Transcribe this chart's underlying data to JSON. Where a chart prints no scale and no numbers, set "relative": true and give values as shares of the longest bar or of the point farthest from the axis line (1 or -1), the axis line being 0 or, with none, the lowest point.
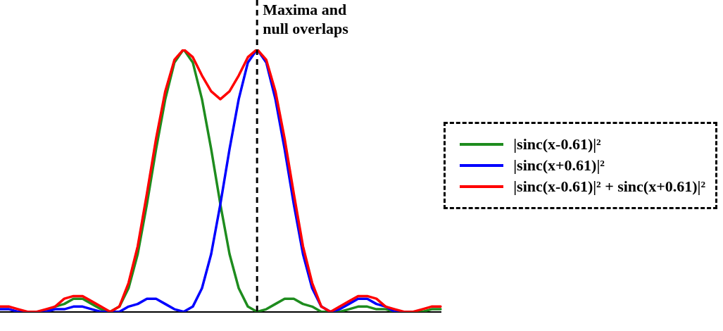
{
  "chart_data": {
    "type": "line",
    "relative": true,
    "legend": "right",
    "marker": "none",
    "line_style": "solid",
    "categories": [
      null,
      null,
      null,
      null,
      null,
      null,
      null,
      null,
      null,
      null,
      null,
      null,
      null,
      null,
      null,
      null,
      null,
      null,
      null,
      null,
      null,
      null,
      null,
      null,
      null,
      null,
      null,
      null,
      null,
      null,
      null,
      null,
      null,
      null,
      null,
      null,
      null,
      null,
      null,
      null,
      null,
      null,
      null,
      null,
      null,
      null,
      null,
      null,
      null
    ],
    "series": [
      {
        "name": "|sinc(x-0.61)|²",
        "color": "#1e8c1e",
        "values": [
          null,
          null,
          null,
          null,
          null,
          0,
          0.02,
          0.03,
          0.05,
          0.05,
          0.03,
          0.01,
          0,
          0.02,
          0.09,
          0.22,
          0.41,
          0.62,
          0.81,
          0.95,
          1,
          0.95,
          0.81,
          0.62,
          0.41,
          0.22,
          0.09,
          0.02,
          0,
          0.01,
          0.03,
          0.05,
          0.05,
          0.03,
          0.02,
          0,
          0,
          0,
          0.01,
          0.02,
          0.02,
          0.01,
          0.01,
          0,
          0,
          0,
          0,
          0.01,
          0.01
        ]
      },
      {
        "name": "|sinc(x+0.61)|²",
        "color": "#0000ff",
        "values": [
          0.01,
          0.01,
          0,
          0,
          0,
          0,
          0.01,
          0.01,
          0.02,
          0.02,
          0.01,
          0,
          0,
          0,
          0.02,
          0.03,
          0.05,
          0.05,
          0.03,
          0.01,
          0,
          0.02,
          0.09,
          0.22,
          0.41,
          0.62,
          0.81,
          0.95,
          1,
          0.95,
          0.81,
          0.62,
          0.41,
          0.22,
          0.09,
          0.02,
          0,
          0.01,
          0.03,
          0.05,
          0.05,
          0.03,
          0.02,
          0,
          0,
          null,
          null,
          null,
          null
        ]
      },
      {
        "name": "|sinc(x-0.61)|² + sinc(x+0.61)|²",
        "color": "#ff0000",
        "values": [
          0.02,
          0.02,
          0.01,
          0,
          0,
          0.01,
          0.02,
          0.05,
          0.06,
          0.06,
          0.04,
          0.02,
          0,
          0.02,
          0.11,
          0.25,
          0.45,
          0.66,
          0.84,
          0.96,
          1,
          0.97,
          0.9,
          0.84,
          0.81,
          0.84,
          0.9,
          0.97,
          1,
          0.96,
          0.84,
          0.66,
          0.45,
          0.25,
          0.11,
          0.02,
          0,
          0.02,
          0.04,
          0.06,
          0.06,
          0.05,
          0.02,
          0.01,
          0,
          0,
          0.01,
          0.02,
          0.02
        ]
      }
    ],
    "ref_lines": [
      {
        "axis": "x",
        "label": "Maxima and null overlaps",
        "color": "#000000",
        "line_style": "dashed"
      }
    ]
  }
}
